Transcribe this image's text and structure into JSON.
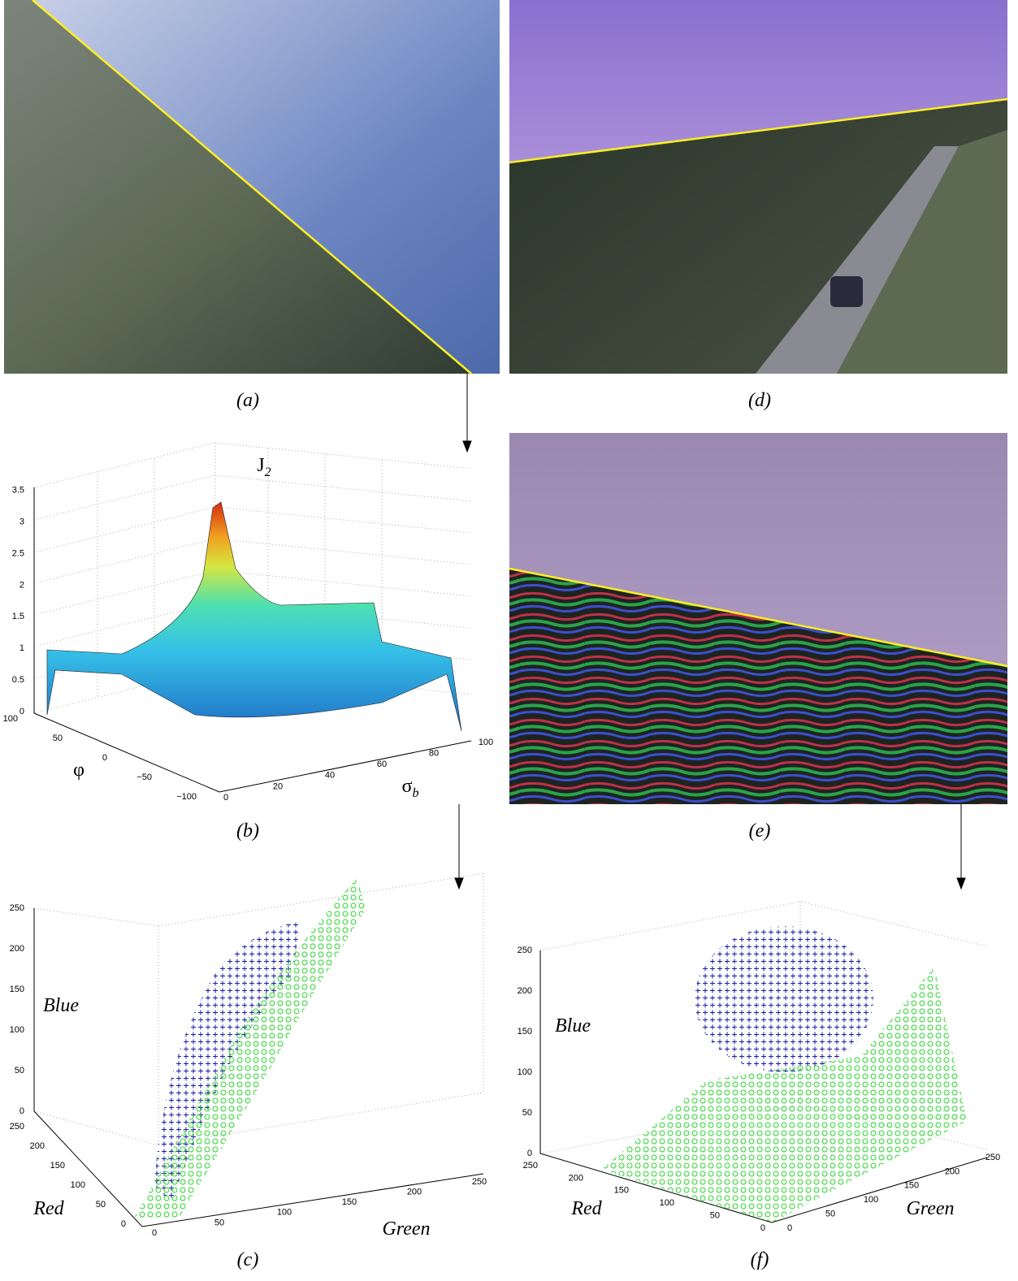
{
  "panels": {
    "a": {
      "caption": "(a)"
    },
    "d": {
      "caption": "(d)"
    },
    "b": {
      "caption": "(b)",
      "z_label": {
        "main": "J",
        "sub": "2"
      },
      "x_label": "φ",
      "y_label": {
        "main": "σ",
        "sub": "b"
      },
      "z_ticks": [
        "0",
        "0.5",
        "1",
        "1.5",
        "2",
        "2.5",
        "3",
        "3.5"
      ],
      "x_ticks": [
        "100",
        "50",
        "0",
        "−50",
        "−100"
      ],
      "y_ticks": [
        "0",
        "20",
        "40",
        "60",
        "80",
        "100"
      ]
    },
    "e": {
      "caption": "(e)"
    },
    "c": {
      "caption": "(c)",
      "z_label": "Blue",
      "x_label": "Red",
      "y_label": "Green",
      "z_ticks": [
        "0",
        "50",
        "100",
        "150",
        "200",
        "250"
      ],
      "x_ticks": [
        "250",
        "200",
        "150",
        "100",
        "50",
        "0"
      ],
      "y_ticks": [
        "0",
        "50",
        "100",
        "150",
        "200",
        "250"
      ]
    },
    "f": {
      "caption": "(f)",
      "z_label": "Blue",
      "x_label": "Red",
      "y_label": "Green",
      "z_ticks": [
        "0",
        "50",
        "100",
        "150",
        "200",
        "250"
      ],
      "x_ticks": [
        "250",
        "200",
        "150",
        "100",
        "50",
        "0"
      ],
      "y_ticks": [
        "0",
        "50",
        "100",
        "150",
        "200",
        "250"
      ]
    }
  }
}
